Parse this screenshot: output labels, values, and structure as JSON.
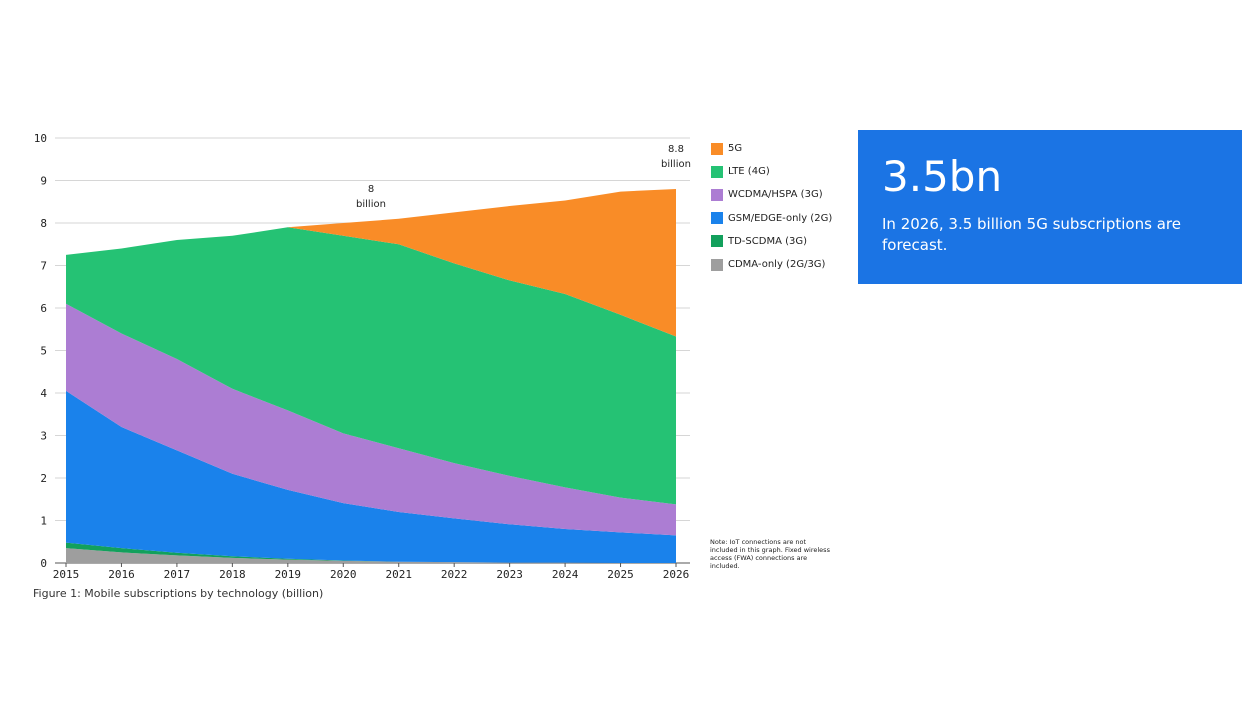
{
  "caption": "Figure 1: Mobile subscriptions by technology (billion)",
  "note": "Note: IoT connections are not included in this graph. Fixed wireless access (FWA) connections are included.",
  "panel": {
    "value": "3.5bn",
    "text": "In 2026, 3.5 billion 5G subscriptions are forecast.",
    "background": "#1b74e4"
  },
  "annotations": [
    {
      "x": "2020.5",
      "value_line": "8",
      "unit_line": "billion"
    },
    {
      "x": "2026",
      "value_line": "8.8",
      "unit_line": "billion"
    }
  ],
  "chart_data": {
    "type": "area",
    "stacked": true,
    "x": [
      "2015",
      "2016",
      "2017",
      "2018",
      "2019",
      "2020",
      "2021",
      "2022",
      "2023",
      "2024",
      "2025",
      "2026"
    ],
    "y_ticks": [
      "0",
      "1",
      "2",
      "3",
      "4",
      "5",
      "6",
      "7",
      "8",
      "9",
      "10"
    ],
    "ylim": [
      0,
      10
    ],
    "grid": true,
    "legend_placement": "right",
    "series": [
      {
        "name": "CDMA-only (2G/3G)",
        "color": "#9e9e9e",
        "values": [
          0.35,
          0.25,
          0.18,
          0.12,
          0.08,
          0.05,
          0.03,
          0.02,
          0.01,
          0.01,
          0.0,
          0.0
        ]
      },
      {
        "name": "TD-SCDMA (3G)",
        "color": "#12a05c",
        "values": [
          0.13,
          0.1,
          0.06,
          0.04,
          0.02,
          0.01,
          0.0,
          0.0,
          0.0,
          0.0,
          0.0,
          0.0
        ]
      },
      {
        "name": "GSM/EDGE-only (2G)",
        "color": "#1a82eb",
        "values": [
          3.57,
          2.85,
          2.41,
          1.94,
          1.62,
          1.35,
          1.17,
          1.03,
          0.9,
          0.79,
          0.72,
          0.65
        ]
      },
      {
        "name": "WCDMA/HSPA (3G)",
        "color": "#ac7dd3",
        "values": [
          2.05,
          2.2,
          2.15,
          2.0,
          1.87,
          1.64,
          1.5,
          1.3,
          1.14,
          0.98,
          0.82,
          0.73
        ]
      },
      {
        "name": "LTE (4G)",
        "color": "#25c274",
        "values": [
          1.15,
          2.0,
          2.8,
          3.6,
          4.31,
          4.65,
          4.8,
          4.7,
          4.6,
          4.55,
          4.3,
          3.95
        ]
      },
      {
        "name": "5G",
        "color": "#f98c27",
        "values": [
          0,
          0,
          0,
          0,
          0,
          0.3,
          0.6,
          1.2,
          1.75,
          2.2,
          2.9,
          3.47
        ]
      }
    ],
    "legend_order": [
      "5G",
      "LTE (4G)",
      "WCDMA/HSPA (3G)",
      "GSM/EDGE-only (2G)",
      "TD-SCDMA (3G)",
      "CDMA-only (2G/3G)"
    ]
  }
}
